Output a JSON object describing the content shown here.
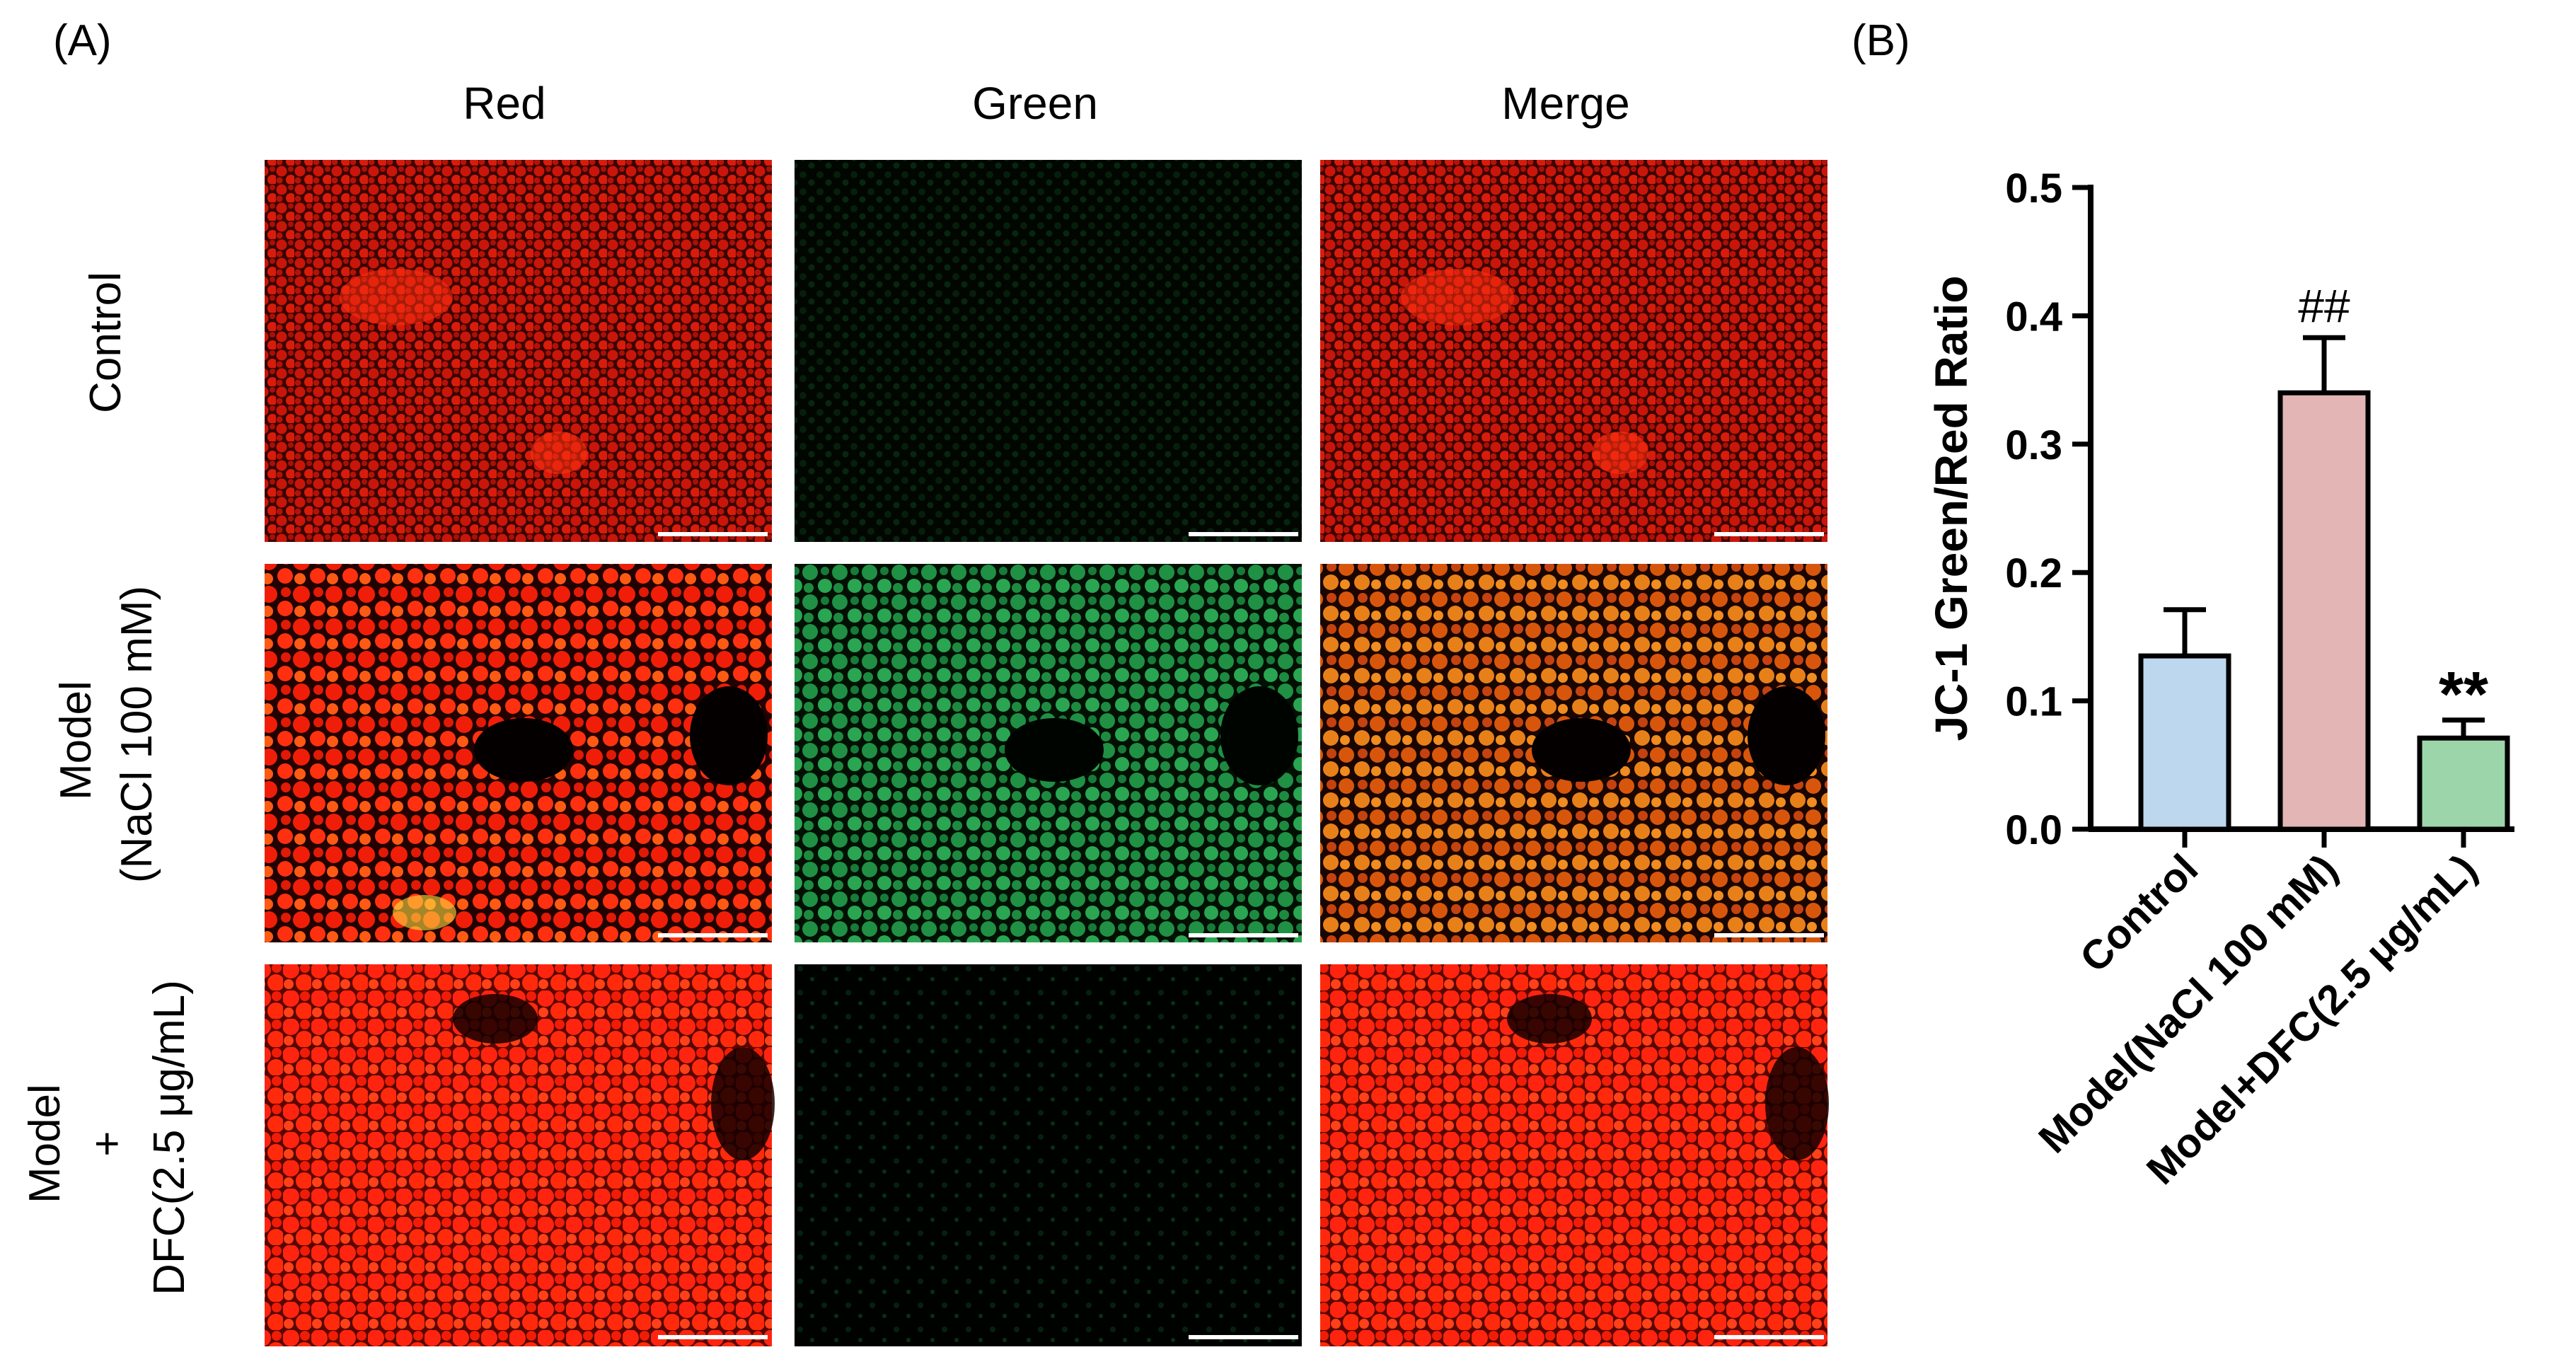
{
  "panel_a": {
    "label": "(A)",
    "columns": [
      "Red",
      "Green",
      "Merge"
    ],
    "rows": [
      {
        "lines": [
          "Control"
        ]
      },
      {
        "lines": [
          "Model",
          "(NaCl 100 mM)"
        ]
      },
      {
        "lines": [
          "Model",
          "+",
          "DFC(2.5 μg/mL)"
        ]
      }
    ],
    "colors": {
      "red_channel": "#ff1e0a",
      "green_channel": "#3cd264",
      "scale_bar": "#ffffff"
    }
  },
  "chart_data": {
    "type": "bar",
    "panel_label": "(B)",
    "categories": [
      "Control",
      "Model(NaCl 100 mM)",
      "Model+DFC(2.5 μg/mL)"
    ],
    "values": [
      0.135,
      0.34,
      0.071
    ],
    "errors": [
      0.036,
      0.043,
      0.014
    ],
    "annotations": [
      "",
      "##",
      "**"
    ],
    "colors": [
      "#bdd7ee",
      "#e3b5b5",
      "#9dd5aa"
    ],
    "xlabel": "",
    "ylabel": "JC-1 Green/Red Ratio",
    "ylim": [
      0,
      0.5
    ],
    "yticks": [
      "0.0",
      "0.1",
      "0.2",
      "0.3",
      "0.4",
      "0.5"
    ],
    "grid": false
  }
}
